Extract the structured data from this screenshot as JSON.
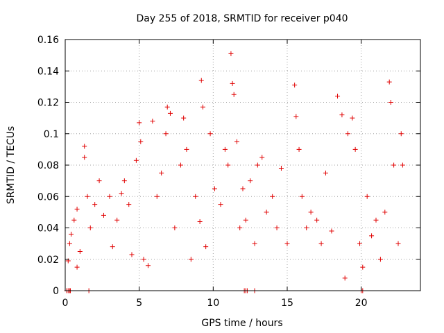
{
  "chart_data": {
    "type": "scatter",
    "title": "Day 255 of 2018, SRMTID for receiver p040",
    "xlabel": "GPS time / hours",
    "ylabel": "SRMTID / TECUs",
    "xlim": [
      0,
      24
    ],
    "ylim": [
      0,
      0.16
    ],
    "xticks": [
      0,
      5,
      10,
      15,
      20
    ],
    "xtick_labels": [
      "0",
      "5",
      "10",
      "15",
      "20"
    ],
    "yticks": [
      0,
      0.02,
      0.04,
      0.06,
      0.08,
      0.1,
      0.12,
      0.14,
      0.16
    ],
    "ytick_labels": [
      "0",
      "0.02",
      "0.04",
      "0.06",
      "0.08",
      "0.1",
      "0.12",
      "0.14",
      "0.16"
    ],
    "grid": true,
    "marker": "plus",
    "color": "#e00000",
    "series": [
      {
        "name": "p040",
        "points": [
          [
            0.1,
            0.0
          ],
          [
            0.2,
            0.0
          ],
          [
            0.3,
            0.0
          ],
          [
            0.35,
            0.0
          ],
          [
            1.6,
            0.0
          ],
          [
            12.1,
            0.0
          ],
          [
            12.2,
            0.0
          ],
          [
            12.3,
            0.0
          ],
          [
            12.8,
            0.0
          ],
          [
            20.0,
            0.0
          ],
          [
            20.1,
            0.0
          ],
          [
            0.2,
            0.019
          ],
          [
            0.3,
            0.03
          ],
          [
            0.4,
            0.036
          ],
          [
            0.6,
            0.045
          ],
          [
            0.8,
            0.052
          ],
          [
            0.8,
            0.015
          ],
          [
            1.0,
            0.025
          ],
          [
            1.3,
            0.092
          ],
          [
            1.3,
            0.085
          ],
          [
            1.5,
            0.06
          ],
          [
            1.7,
            0.04
          ],
          [
            2.0,
            0.055
          ],
          [
            2.3,
            0.07
          ],
          [
            2.6,
            0.048
          ],
          [
            3.0,
            0.06
          ],
          [
            3.2,
            0.028
          ],
          [
            3.5,
            0.045
          ],
          [
            3.8,
            0.062
          ],
          [
            4.0,
            0.07
          ],
          [
            4.3,
            0.055
          ],
          [
            4.5,
            0.023
          ],
          [
            4.8,
            0.083
          ],
          [
            5.0,
            0.107
          ],
          [
            5.1,
            0.095
          ],
          [
            5.3,
            0.02
          ],
          [
            5.6,
            0.016
          ],
          [
            5.9,
            0.108
          ],
          [
            6.2,
            0.06
          ],
          [
            6.5,
            0.075
          ],
          [
            6.8,
            0.1
          ],
          [
            6.9,
            0.117
          ],
          [
            7.1,
            0.113
          ],
          [
            7.4,
            0.04
          ],
          [
            7.8,
            0.08
          ],
          [
            8.0,
            0.11
          ],
          [
            8.2,
            0.09
          ],
          [
            8.5,
            0.02
          ],
          [
            8.8,
            0.06
          ],
          [
            9.1,
            0.044
          ],
          [
            9.2,
            0.134
          ],
          [
            9.3,
            0.117
          ],
          [
            9.5,
            0.028
          ],
          [
            9.8,
            0.1
          ],
          [
            10.1,
            0.065
          ],
          [
            10.5,
            0.055
          ],
          [
            10.8,
            0.09
          ],
          [
            11.0,
            0.08
          ],
          [
            11.2,
            0.151
          ],
          [
            11.3,
            0.132
          ],
          [
            11.4,
            0.125
          ],
          [
            11.6,
            0.095
          ],
          [
            11.8,
            0.04
          ],
          [
            12.0,
            0.065
          ],
          [
            12.2,
            0.045
          ],
          [
            12.5,
            0.07
          ],
          [
            12.8,
            0.03
          ],
          [
            13.0,
            0.08
          ],
          [
            13.3,
            0.085
          ],
          [
            13.6,
            0.05
          ],
          [
            14.0,
            0.06
          ],
          [
            14.3,
            0.04
          ],
          [
            14.6,
            0.078
          ],
          [
            15.0,
            0.03
          ],
          [
            15.5,
            0.131
          ],
          [
            15.6,
            0.111
          ],
          [
            15.8,
            0.09
          ],
          [
            16.0,
            0.06
          ],
          [
            16.3,
            0.04
          ],
          [
            16.6,
            0.05
          ],
          [
            17.0,
            0.045
          ],
          [
            17.3,
            0.03
          ],
          [
            17.6,
            0.075
          ],
          [
            18.0,
            0.038
          ],
          [
            18.4,
            0.124
          ],
          [
            18.7,
            0.112
          ],
          [
            18.9,
            0.008
          ],
          [
            19.1,
            0.1
          ],
          [
            19.4,
            0.11
          ],
          [
            19.6,
            0.09
          ],
          [
            19.9,
            0.03
          ],
          [
            20.1,
            0.015
          ],
          [
            20.4,
            0.06
          ],
          [
            20.7,
            0.035
          ],
          [
            21.0,
            0.045
          ],
          [
            21.3,
            0.02
          ],
          [
            21.6,
            0.05
          ],
          [
            21.9,
            0.133
          ],
          [
            22.0,
            0.12
          ],
          [
            22.2,
            0.08
          ],
          [
            22.5,
            0.03
          ],
          [
            22.7,
            0.1
          ],
          [
            22.8,
            0.08
          ]
        ]
      }
    ]
  }
}
